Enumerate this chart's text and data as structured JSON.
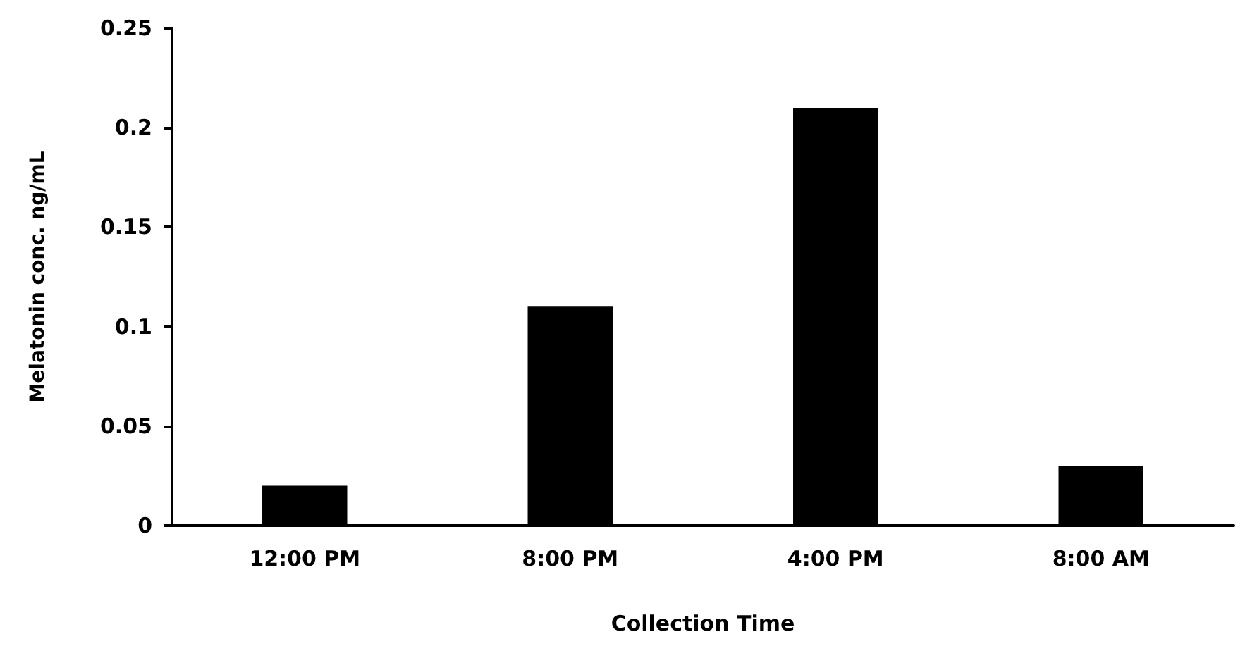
{
  "chart_data": {
    "type": "bar",
    "xlabel": "Collection Time",
    "ylabel": "Melatonin conc. ng/mL",
    "categories": [
      "12:00 PM",
      "8:00 PM",
      "4:00 PM",
      "8:00 AM"
    ],
    "values": [
      0.02,
      0.11,
      0.21,
      0.03
    ],
    "color": "#000000",
    "ylim": [
      0,
      0.25
    ],
    "yticks": [
      0,
      0.05,
      0.1,
      0.15,
      0.2,
      0.25
    ],
    "grid": false
  }
}
